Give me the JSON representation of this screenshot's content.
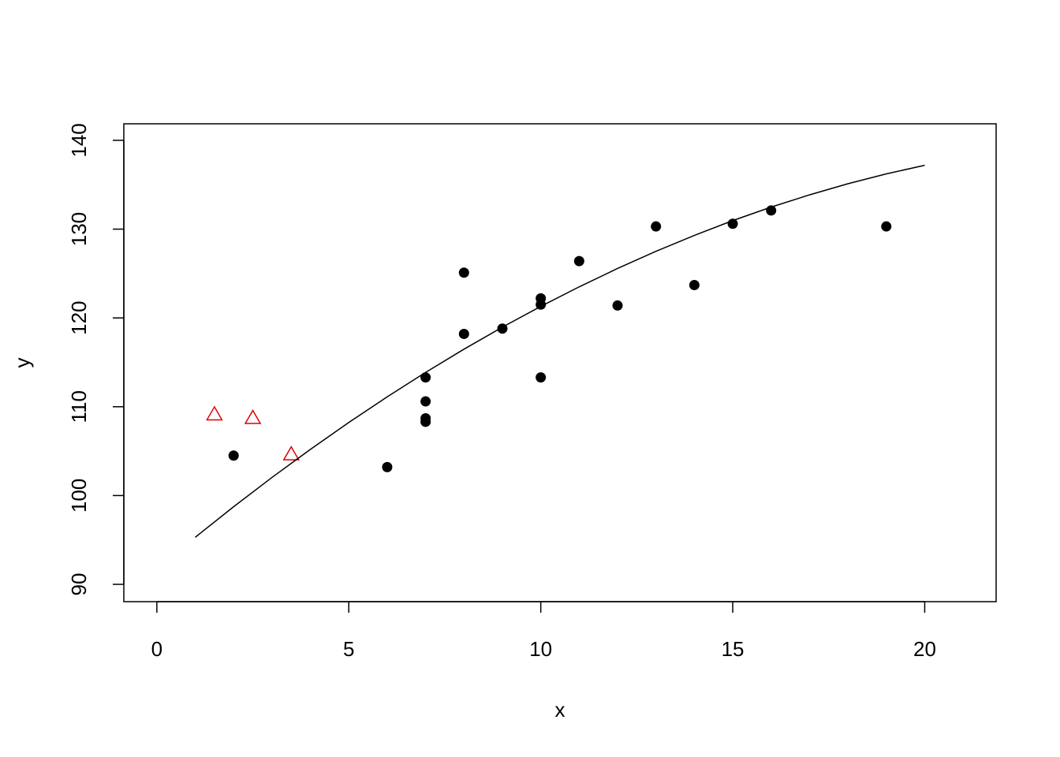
{
  "chart_data": {
    "type": "scatter",
    "xlabel": "x",
    "ylabel": "y",
    "xlim": [
      -0.86,
      21.86
    ],
    "ylim": [
      88.05,
      141.86
    ],
    "xticks": [
      0,
      5,
      10,
      15,
      20
    ],
    "yticks": [
      90,
      100,
      110,
      120,
      130,
      140
    ],
    "series": [
      {
        "mode": "markers",
        "marker": "circle",
        "color": "#000000",
        "x": [
          2,
          6,
          7,
          7,
          7,
          7,
          8,
          8,
          9,
          10,
          10,
          10,
          11,
          12,
          13,
          14,
          15,
          16,
          19
        ],
        "values": [
          104.5,
          103.2,
          113.3,
          110.6,
          108.7,
          108.3,
          125.1,
          118.2,
          118.8,
          122.2,
          121.5,
          113.3,
          126.4,
          121.4,
          130.3,
          123.7,
          130.6,
          132.1,
          130.3
        ]
      },
      {
        "mode": "markers",
        "marker": "triangle",
        "color": "#dd0000",
        "x": [
          1.5,
          2.5,
          3.5
        ],
        "values": [
          109.1,
          108.7,
          104.6
        ]
      },
      {
        "mode": "line",
        "color": "#000000",
        "x": [
          1,
          2,
          3,
          4,
          5,
          6,
          7,
          8,
          9,
          10,
          11,
          12,
          13,
          14,
          15,
          16,
          17,
          18,
          19,
          20
        ],
        "values": [
          95.3,
          98.74,
          102.04,
          105.2,
          108.23,
          111.11,
          113.87,
          116.48,
          118.96,
          121.3,
          123.5,
          125.57,
          127.5,
          129.29,
          130.96,
          132.48,
          133.86,
          135.11,
          136.22,
          137.19
        ]
      }
    ]
  }
}
